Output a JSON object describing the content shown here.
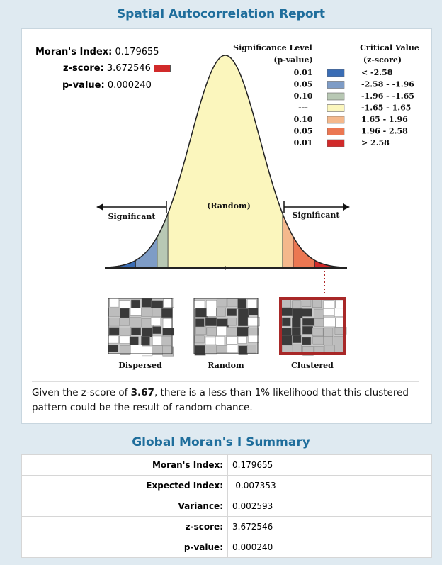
{
  "header": {
    "title": "Spatial Autocorrelation Report"
  },
  "stats": [
    {
      "label": "Moran's Index:",
      "value": "0.179655"
    },
    {
      "label": "z-score:",
      "value": "3.672546"
    },
    {
      "label": "p-value:",
      "value": "0.000240"
    }
  ],
  "legend": {
    "p_header": [
      "Significance Level",
      "(p-value)"
    ],
    "z_header": [
      "Critical Value",
      "(z-score)"
    ],
    "rows": [
      {
        "p": "0.01",
        "z": "< -2.58",
        "color": "#3a6db5"
      },
      {
        "p": "0.05",
        "z": "-2.58 - -1.96",
        "color": "#7e9cc6"
      },
      {
        "p": "0.10",
        "z": "-1.96 - -1.65",
        "color": "#b8c8b4"
      },
      {
        "p": "---",
        "z": "-1.65 - 1.65",
        "color": "#fbf6bd"
      },
      {
        "p": "0.10",
        "z": "1.65 - 1.96",
        "color": "#f4b88c"
      },
      {
        "p": "0.05",
        "z": "1.96 - 2.58",
        "color": "#eb7752"
      },
      {
        "p": "0.01",
        "z": "> 2.58",
        "color": "#d12a2a"
      }
    ]
  },
  "curve": {
    "left": "Significant",
    "center": "(Random)",
    "right": "Significant"
  },
  "patterns": [
    "Dispersed",
    "Random",
    "Clustered"
  ],
  "conclusion": {
    "before": "Given the z-score of ",
    "z": "3.67",
    "after": ", there is a less than 1% likelihood that this clustered pattern could be the result of random chance."
  },
  "summary": {
    "title": "Global Moran's I Summary",
    "rows": [
      [
        "Moran's Index:",
        "0.179655"
      ],
      [
        "Expected Index:",
        "-0.007353"
      ],
      [
        "Variance:",
        "0.002593"
      ],
      [
        "z-score:",
        "3.672546"
      ],
      [
        "p-value:",
        "0.000240"
      ]
    ]
  }
}
